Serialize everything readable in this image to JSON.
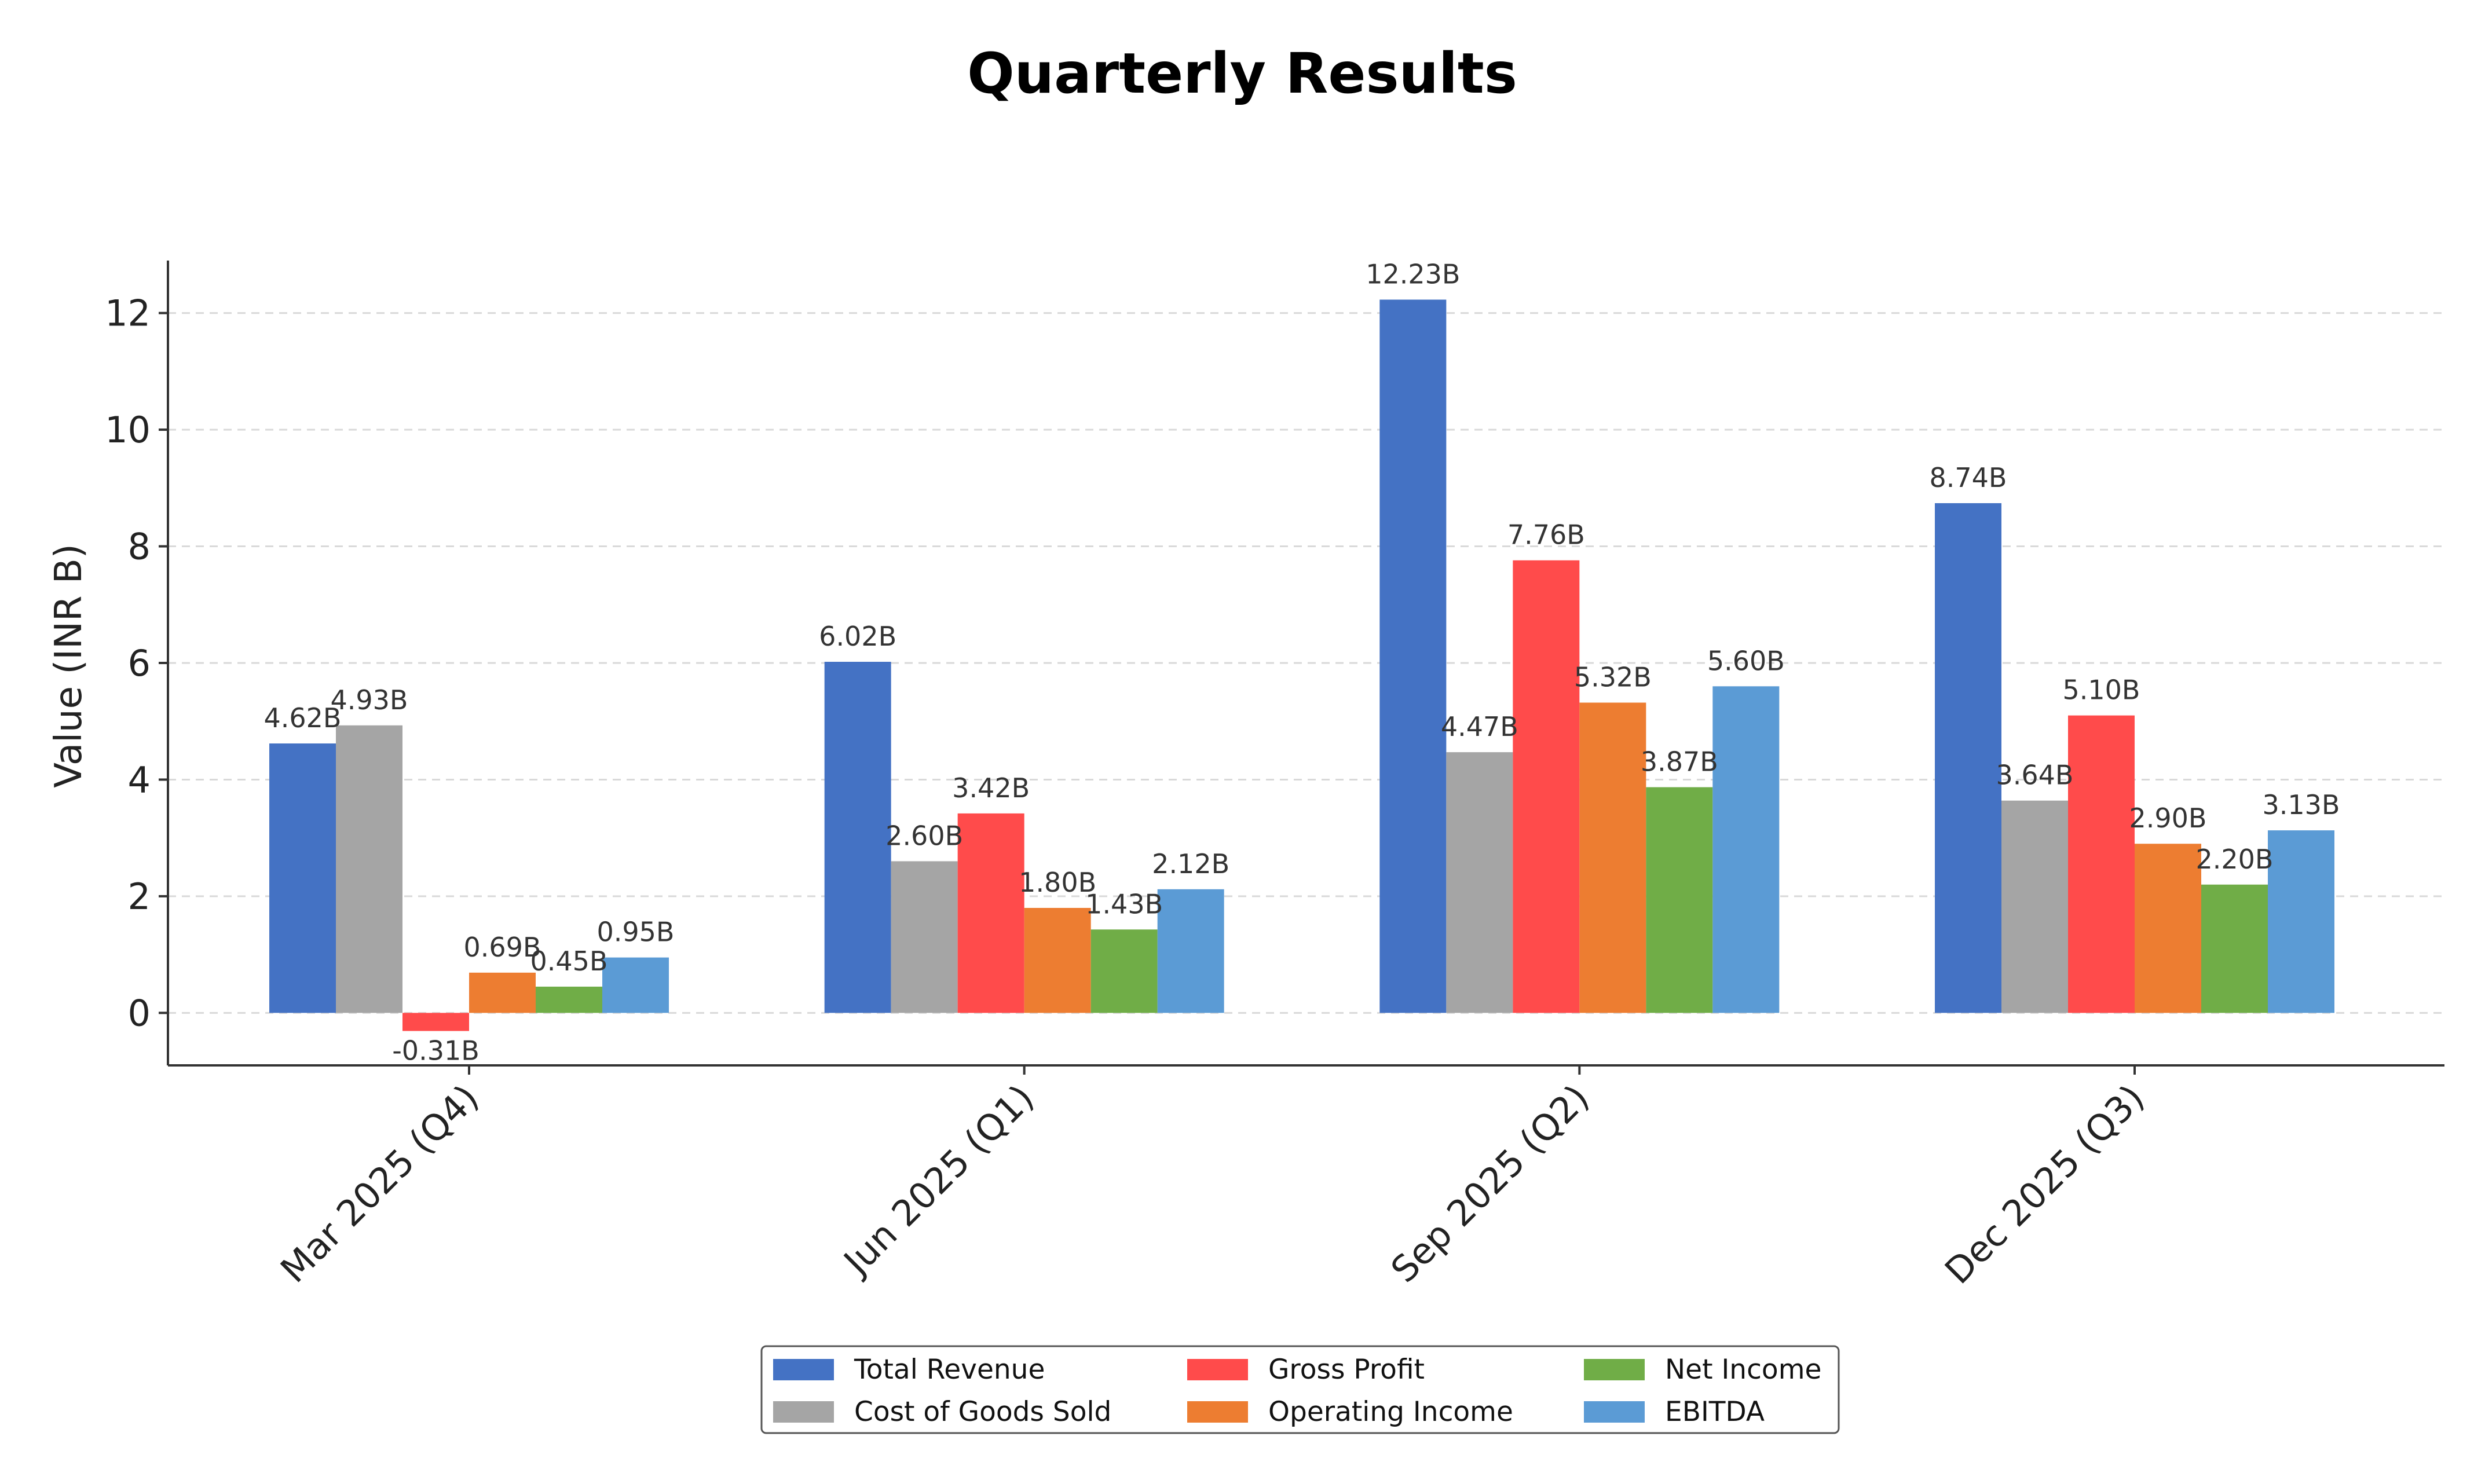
{
  "chart_data": {
    "type": "bar",
    "title": "Quarterly Results",
    "xlabel": "",
    "ylabel": "Value (INR B)",
    "ylim": [
      -0.9,
      12.9
    ],
    "yticks": [
      0,
      2,
      4,
      6,
      8,
      10,
      12
    ],
    "grid": true,
    "legend_position": "bottom-center",
    "value_suffix": "B",
    "categories": [
      "Mar 2025 (Q4)",
      "Jun 2025 (Q1)",
      "Sep 2025 (Q2)",
      "Dec 2025 (Q3)"
    ],
    "series": [
      {
        "name": "Total Revenue",
        "color": "#4472C4",
        "values": [
          4.62,
          6.02,
          12.23,
          8.74
        ]
      },
      {
        "name": "Cost of Goods Sold",
        "color": "#A5A5A5",
        "values": [
          4.93,
          2.6,
          4.47,
          3.64
        ]
      },
      {
        "name": "Gross Profit",
        "color": "#FF4B4B",
        "values": [
          -0.31,
          3.42,
          7.76,
          5.1
        ]
      },
      {
        "name": "Operating Income",
        "color": "#ED7D31",
        "values": [
          0.69,
          1.8,
          5.32,
          2.9
        ]
      },
      {
        "name": "Net Income",
        "color": "#70AD47",
        "values": [
          0.45,
          1.43,
          3.87,
          2.2
        ]
      },
      {
        "name": "EBITDA",
        "color": "#5B9BD5",
        "values": [
          0.95,
          2.12,
          5.6,
          3.13
        ]
      }
    ]
  }
}
